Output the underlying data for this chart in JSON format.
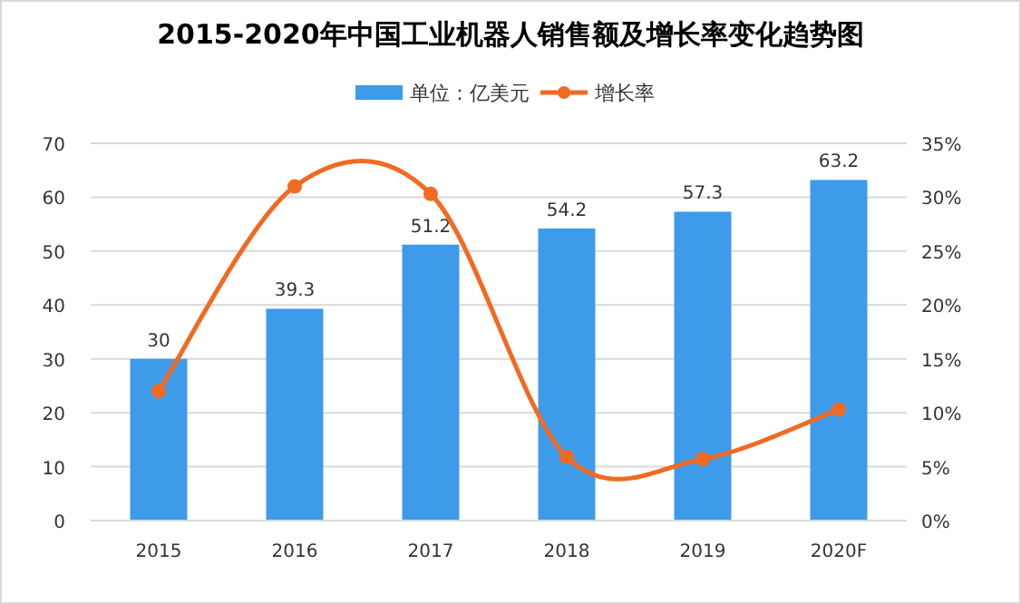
{
  "chart_data": {
    "type": "bar",
    "title": "2015-2020年中国工业机器人销售额及增长率变化趋势图",
    "categories": [
      "2015",
      "2016",
      "2017",
      "2018",
      "2019",
      "2020F"
    ],
    "series": [
      {
        "name": "单位：亿美元",
        "color": "#3d9be9",
        "values": [
          30,
          39.3,
          51.2,
          54.2,
          57.3,
          63.2
        ],
        "value_labels": [
          "30",
          "39.3",
          "51.2",
          "54.2",
          "57.3",
          "63.2"
        ]
      },
      {
        "name": "增长率",
        "type": "line",
        "axis": "y2",
        "color": "#f26a21",
        "values": [
          12,
          31,
          30.3,
          5.9,
          5.7,
          10.3
        ]
      }
    ],
    "ylim": [
      0,
      70
    ],
    "yticks": [
      0,
      10,
      20,
      30,
      40,
      50,
      60,
      70
    ],
    "y2lim": [
      0,
      35
    ],
    "y2ticks": [
      {
        "value": 0,
        "label": "0%"
      },
      {
        "value": 5,
        "label": "5%"
      },
      {
        "value": 10,
        "label": "10%"
      },
      {
        "value": 15,
        "label": "15%"
      },
      {
        "value": 20,
        "label": "20%"
      },
      {
        "value": 25,
        "label": "25%"
      },
      {
        "value": 30,
        "label": "30%"
      },
      {
        "value": 35,
        "label": "35%"
      }
    ],
    "grid": "y",
    "legend": "top",
    "marker": "circle"
  }
}
